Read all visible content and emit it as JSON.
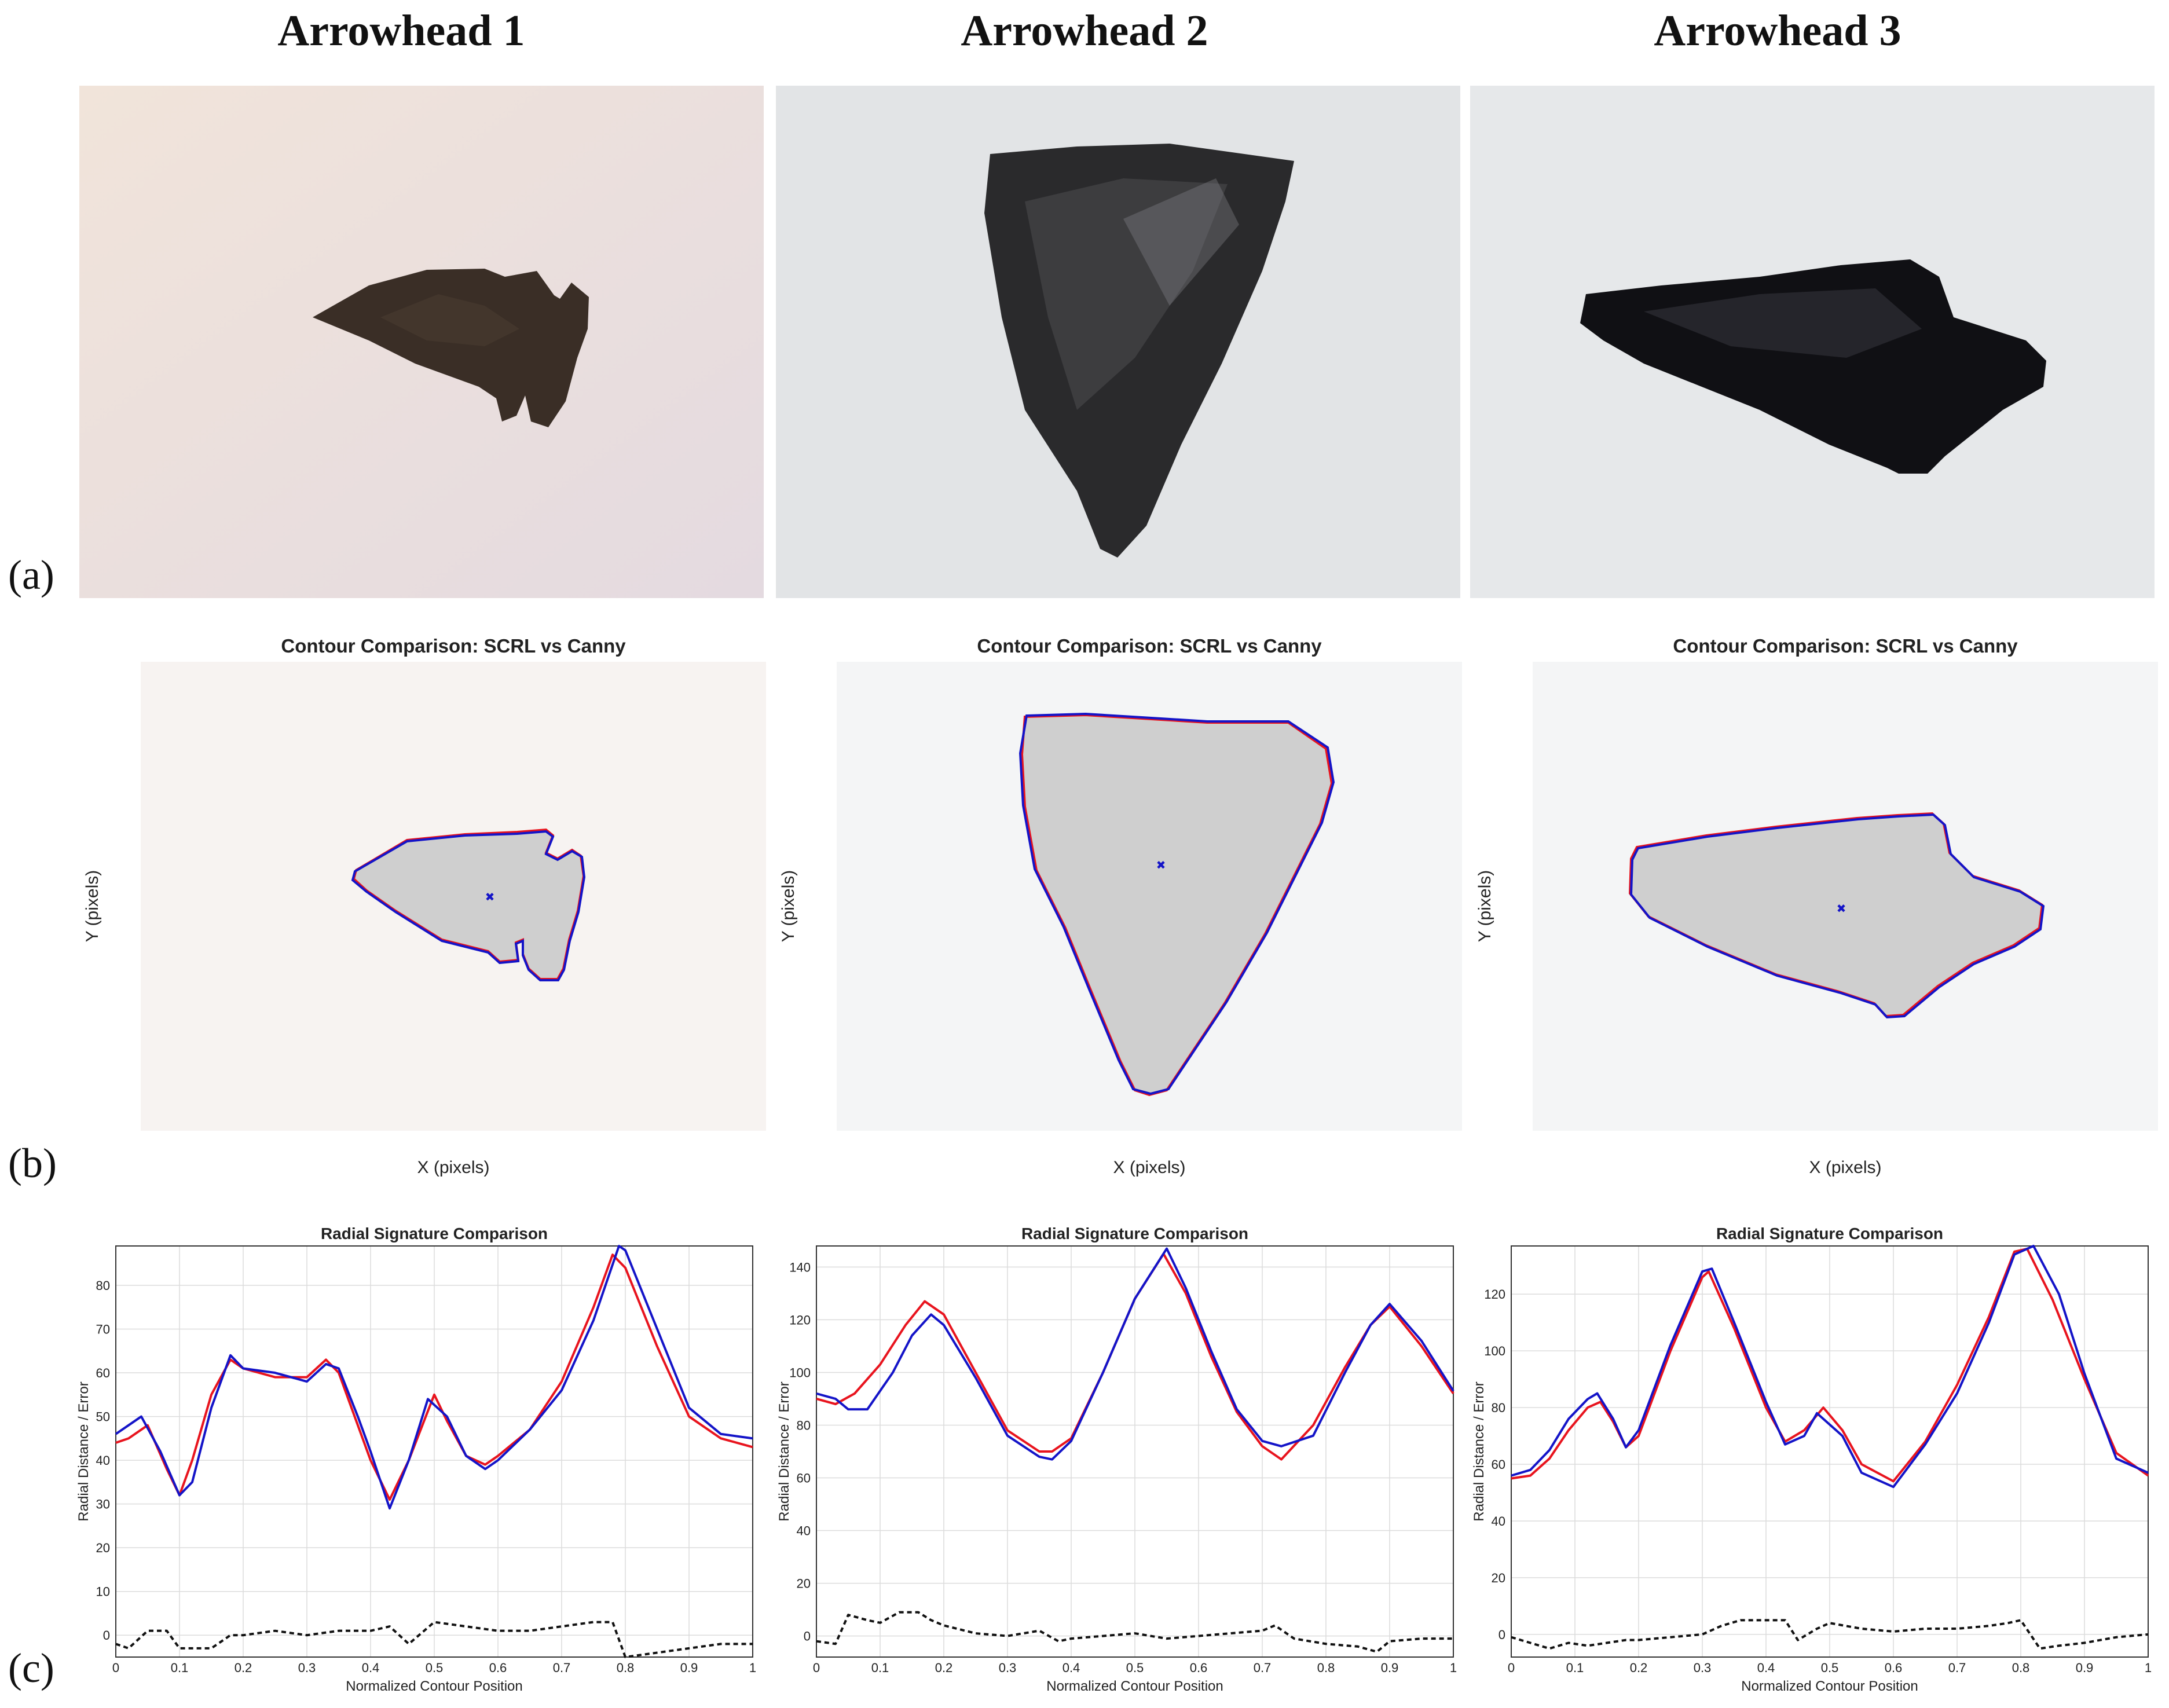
{
  "columns": [
    {
      "title": "Arrowhead 1"
    },
    {
      "title": "Arrowhead 2"
    },
    {
      "title": "Arrowhead 3"
    }
  ],
  "row_labels": {
    "a": "(a)",
    "b": "(b)",
    "c": "(c)"
  },
  "contour": {
    "title": "Contour Comparison: SCRL vs Canny",
    "xlabel": "X (pixels)",
    "ylabel": "Y (pixels)"
  },
  "colors": {
    "scrl": "#e8141e",
    "canny": "#1414c8",
    "error": "#111111",
    "grid": "#dcdcdc",
    "fill": "#c8c8c8"
  },
  "chart_data": [
    {
      "type": "line",
      "title": "Radial Signature Comparison",
      "xlabel": "Normalized Contour Position",
      "ylabel": "Radial Distance / Error",
      "xlim": [
        0,
        1
      ],
      "ylim": [
        -5,
        89
      ],
      "xticks": [
        0,
        0.1,
        0.2,
        0.3,
        0.4,
        0.5,
        0.6,
        0.7,
        0.8,
        0.9,
        1
      ],
      "yticks": [
        0,
        10,
        20,
        30,
        40,
        50,
        60,
        70,
        80
      ],
      "grid": true,
      "series": [
        {
          "style": "red",
          "x": [
            0,
            0.02,
            0.05,
            0.08,
            0.1,
            0.12,
            0.15,
            0.18,
            0.2,
            0.25,
            0.3,
            0.33,
            0.35,
            0.38,
            0.4,
            0.43,
            0.46,
            0.5,
            0.52,
            0.55,
            0.58,
            0.6,
            0.65,
            0.7,
            0.75,
            0.78,
            0.8,
            0.85,
            0.9,
            0.95,
            1
          ],
          "values": [
            44,
            45,
            48,
            38,
            32,
            40,
            55,
            63,
            61,
            59,
            59,
            63,
            60,
            48,
            40,
            31,
            40,
            55,
            49,
            41,
            39,
            41,
            47,
            58,
            75,
            87,
            84,
            66,
            50,
            45,
            43
          ]
        },
        {
          "style": "blue",
          "x": [
            0,
            0.02,
            0.04,
            0.07,
            0.1,
            0.12,
            0.15,
            0.18,
            0.2,
            0.25,
            0.3,
            0.33,
            0.35,
            0.38,
            0.4,
            0.43,
            0.46,
            0.49,
            0.52,
            0.55,
            0.58,
            0.6,
            0.65,
            0.7,
            0.75,
            0.79,
            0.8,
            0.85,
            0.9,
            0.95,
            1
          ],
          "values": [
            46,
            48,
            50,
            42,
            32,
            35,
            52,
            64,
            61,
            60,
            58,
            62,
            61,
            50,
            42,
            29,
            40,
            54,
            50,
            41,
            38,
            40,
            47,
            56,
            72,
            89,
            88,
            70,
            52,
            46,
            45
          ]
        },
        {
          "style": "dashed",
          "x": [
            0,
            0.02,
            0.05,
            0.08,
            0.1,
            0.15,
            0.18,
            0.2,
            0.25,
            0.3,
            0.35,
            0.4,
            0.43,
            0.46,
            0.5,
            0.55,
            0.6,
            0.65,
            0.7,
            0.75,
            0.78,
            0.8,
            0.85,
            0.9,
            0.95,
            1
          ],
          "values": [
            -2,
            -3,
            1,
            1,
            -3,
            -3,
            0,
            0,
            1,
            0,
            1,
            1,
            2,
            -2,
            3,
            2,
            1,
            1,
            2,
            3,
            3,
            -5,
            -4,
            -3,
            -2,
            -2
          ]
        }
      ]
    },
    {
      "type": "line",
      "title": "Radial Signature Comparison",
      "xlabel": "Normalized Contour Position",
      "ylabel": "Radial Distance / Error",
      "xlim": [
        0,
        1
      ],
      "ylim": [
        -8,
        148
      ],
      "xticks": [
        0,
        0.1,
        0.2,
        0.3,
        0.4,
        0.5,
        0.6,
        0.7,
        0.8,
        0.9,
        1
      ],
      "yticks": [
        0,
        20,
        40,
        60,
        80,
        100,
        120,
        140
      ],
      "grid": true,
      "series": [
        {
          "style": "red",
          "x": [
            0,
            0.03,
            0.06,
            0.1,
            0.14,
            0.17,
            0.2,
            0.25,
            0.3,
            0.35,
            0.37,
            0.4,
            0.45,
            0.5,
            0.545,
            0.58,
            0.62,
            0.66,
            0.7,
            0.73,
            0.78,
            0.83,
            0.87,
            0.9,
            0.95,
            1
          ],
          "values": [
            90,
            88,
            92,
            103,
            118,
            127,
            122,
            100,
            78,
            70,
            70,
            75,
            100,
            128,
            145,
            130,
            106,
            85,
            72,
            67,
            80,
            102,
            118,
            125,
            110,
            92
          ]
        },
        {
          "style": "blue",
          "x": [
            0,
            0.03,
            0.05,
            0.08,
            0.12,
            0.15,
            0.18,
            0.2,
            0.25,
            0.3,
            0.35,
            0.37,
            0.4,
            0.45,
            0.5,
            0.55,
            0.58,
            0.62,
            0.66,
            0.7,
            0.73,
            0.78,
            0.83,
            0.87,
            0.9,
            0.95,
            1
          ],
          "values": [
            92,
            90,
            86,
            86,
            100,
            114,
            122,
            118,
            98,
            76,
            68,
            67,
            74,
            100,
            128,
            147,
            132,
            108,
            86,
            74,
            72,
            76,
            100,
            118,
            126,
            112,
            93
          ]
        },
        {
          "style": "dashed",
          "x": [
            0,
            0.03,
            0.05,
            0.08,
            0.1,
            0.13,
            0.16,
            0.18,
            0.2,
            0.25,
            0.3,
            0.35,
            0.38,
            0.4,
            0.45,
            0.5,
            0.55,
            0.6,
            0.65,
            0.7,
            0.72,
            0.75,
            0.8,
            0.85,
            0.88,
            0.9,
            0.95,
            1
          ],
          "values": [
            -2,
            -3,
            8,
            6,
            5,
            9,
            9,
            6,
            4,
            1,
            0,
            2,
            -2,
            -1,
            0,
            1,
            -1,
            0,
            1,
            2,
            4,
            -1,
            -3,
            -4,
            -6,
            -2,
            -1,
            -1
          ]
        }
      ]
    },
    {
      "type": "line",
      "title": "Radial Signature Comparison",
      "xlabel": "Normalized Contour Position",
      "ylabel": "Radial Distance / Error",
      "xlim": [
        0,
        1
      ],
      "ylim": [
        -8,
        137
      ],
      "xticks": [
        0,
        0.1,
        0.2,
        0.3,
        0.4,
        0.5,
        0.6,
        0.7,
        0.8,
        0.9,
        1
      ],
      "yticks": [
        0,
        20,
        40,
        60,
        80,
        100,
        120
      ],
      "grid": true,
      "series": [
        {
          "style": "red",
          "x": [
            0,
            0.03,
            0.06,
            0.09,
            0.12,
            0.14,
            0.16,
            0.18,
            0.2,
            0.25,
            0.3,
            0.31,
            0.35,
            0.4,
            0.43,
            0.46,
            0.49,
            0.52,
            0.55,
            0.6,
            0.65,
            0.7,
            0.75,
            0.79,
            0.81,
            0.85,
            0.9,
            0.95,
            1
          ],
          "values": [
            55,
            56,
            62,
            72,
            80,
            82,
            75,
            66,
            70,
            100,
            126,
            128,
            108,
            80,
            68,
            72,
            80,
            72,
            60,
            54,
            68,
            88,
            112,
            135,
            136,
            118,
            90,
            64,
            56
          ]
        },
        {
          "style": "blue",
          "x": [
            0,
            0.03,
            0.06,
            0.09,
            0.12,
            0.135,
            0.16,
            0.18,
            0.2,
            0.25,
            0.3,
            0.315,
            0.35,
            0.4,
            0.43,
            0.46,
            0.48,
            0.52,
            0.55,
            0.6,
            0.65,
            0.7,
            0.75,
            0.79,
            0.82,
            0.86,
            0.9,
            0.95,
            1
          ],
          "values": [
            56,
            58,
            65,
            76,
            83,
            85,
            76,
            66,
            72,
            102,
            128,
            129,
            110,
            82,
            67,
            70,
            78,
            70,
            57,
            52,
            67,
            85,
            110,
            134,
            137,
            120,
            92,
            62,
            57
          ]
        },
        {
          "style": "dashed",
          "x": [
            0,
            0.03,
            0.06,
            0.09,
            0.12,
            0.15,
            0.18,
            0.2,
            0.25,
            0.3,
            0.33,
            0.36,
            0.4,
            0.43,
            0.45,
            0.48,
            0.5,
            0.55,
            0.6,
            0.65,
            0.7,
            0.75,
            0.78,
            0.8,
            0.83,
            0.86,
            0.9,
            0.95,
            1
          ],
          "values": [
            -1,
            -3,
            -5,
            -3,
            -4,
            -3,
            -2,
            -2,
            -1,
            0,
            3,
            5,
            5,
            5,
            -2,
            2,
            4,
            2,
            1,
            2,
            2,
            3,
            4,
            5,
            -5,
            -4,
            -3,
            -1,
            0
          ]
        }
      ]
    }
  ]
}
